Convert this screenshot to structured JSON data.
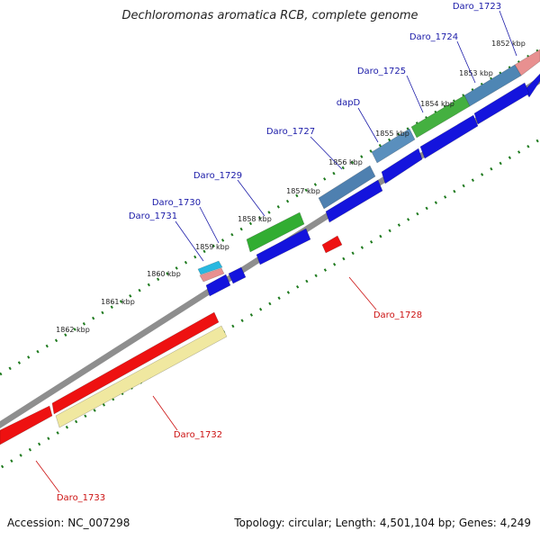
{
  "title": "Dechloromonas aromatica RCB, complete genome",
  "footer": {
    "accession": "Accession: NC_007298",
    "topology": "Topology: circular; Length: 4,501,104 bp; Genes: 4,249"
  },
  "colors": {
    "backbone": "#8e8e8e",
    "forward_label": "#1a1aa8",
    "reverse_label": "#cc1111",
    "scale_tick": "#1e7a1e",
    "scale_label": "#222222"
  },
  "scale_ticks": [
    "1852 kbp",
    "1853 kbp",
    "1854 kbp",
    "1855 kbp",
    "1856 kbp",
    "1857 kbp",
    "1858 kbp",
    "1859 kbp",
    "1860 kbp",
    "1861 kbp",
    "1862 kbp"
  ],
  "forward_gene_labels": [
    "Daro_1723",
    "Daro_1724",
    "Daro_1725",
    "dapD",
    "Daro_1727",
    "Daro_1729",
    "Daro_1730",
    "Daro_1731"
  ],
  "reverse_gene_labels": [
    "Daro_1728",
    "Daro_1732",
    "Daro_1733"
  ],
  "forward_genes": [
    {
      "name": "Daro_1723",
      "color": "#e89090"
    },
    {
      "name": "Daro_1724",
      "color": "#4e86b4"
    },
    {
      "name": "Daro_1725",
      "color": "#44b040"
    },
    {
      "name": "dapD",
      "color": "#5a8fbd"
    },
    {
      "name": "Daro_1727",
      "color": "#4e80b0"
    },
    {
      "name": "Daro_1729",
      "color": "#32ad32"
    },
    {
      "name": "Daro_1730",
      "color": "#29b8e0"
    },
    {
      "name": "Daro_1731",
      "color": "#e89090"
    }
  ],
  "reverse_genes": [
    {
      "name": "Daro_1728",
      "color": "#ee1111"
    },
    {
      "name": "Daro_1732",
      "color": "#ee1111"
    },
    {
      "name": "Daro_1733",
      "color": "#ee1111"
    }
  ]
}
